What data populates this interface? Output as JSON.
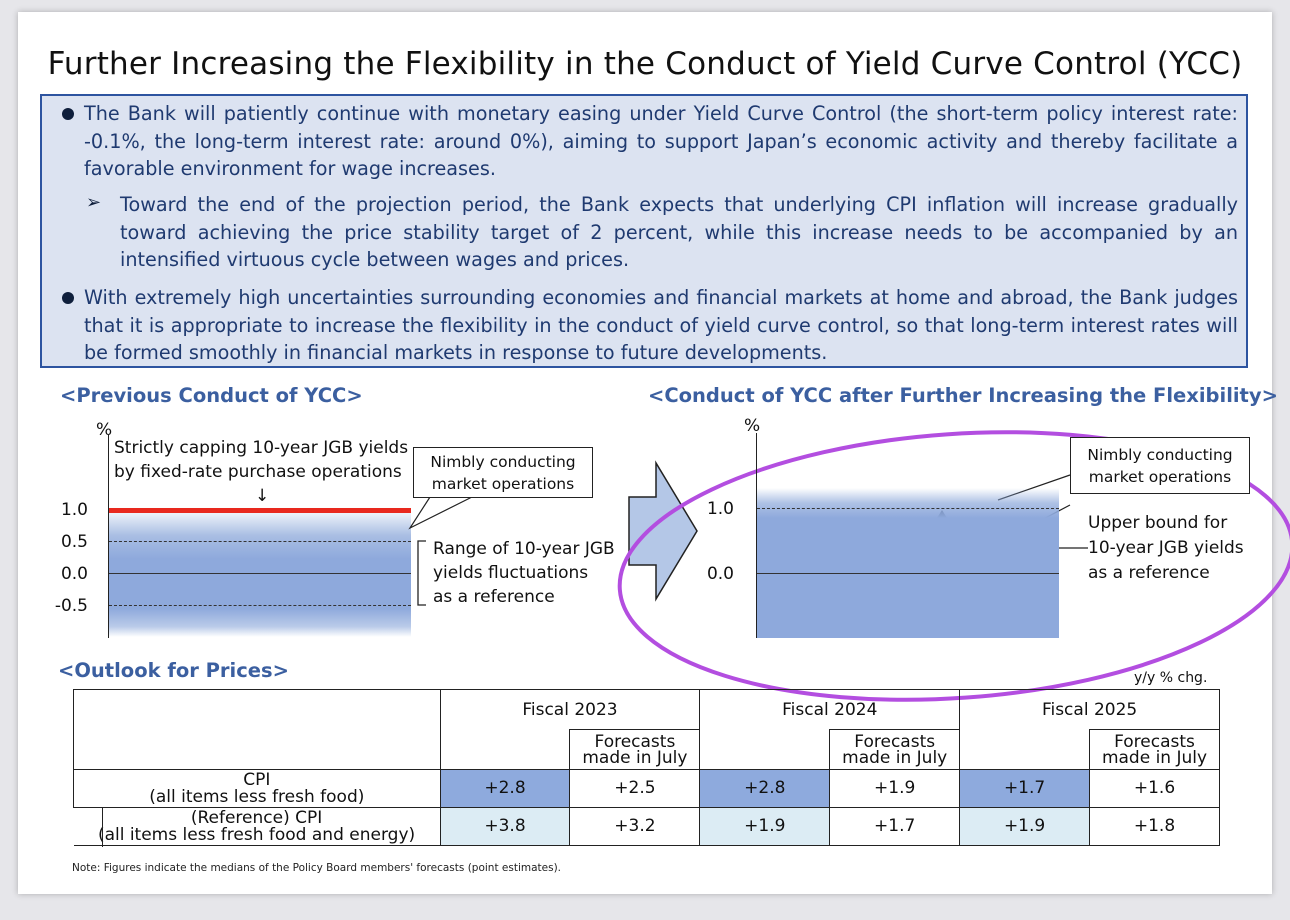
{
  "title": "Further Increasing the Flexibility in the Conduct of Yield Curve Control (YCC)",
  "summary": {
    "bullet1": "The Bank will patiently continue with monetary easing under Yield Curve Control (the short-term policy interest rate: -0.1%, the long-term interest rate: around 0%), aiming to support Japan’s economic activity and thereby facilitate a favorable environment for wage increases.",
    "sub1": "Toward the end of the projection period, the Bank expects that underlying CPI inflation will increase gradually toward achieving the price stability target of 2 percent, while this increase needs to be accompanied by an intensified virtuous cycle between wages and prices.",
    "bullet2": "With extremely high uncertainties surrounding economies and financial markets at home and abroad, the Bank judges that it is appropriate to increase the flexibility in the conduct of yield curve control, so that long-term interest rates will be formed smoothly in financial markets in response to future developments."
  },
  "previous": {
    "heading": "<Previous Conduct of YCC>",
    "unit": "%",
    "ticks": [
      "1.0",
      "0.5",
      "0.0",
      "-0.5"
    ],
    "cap_line1": "Strictly capping 10-year JGB yields",
    "cap_line2": "by fixed-rate purchase operations",
    "cap_arrow": "↓",
    "callout_line1": "Nimbly conducting",
    "callout_line2": "market operations",
    "range_line1": "Range of 10-year JGB",
    "range_line2": "yields fluctuations",
    "range_line3": "as a reference",
    "accent_color": "#e8281e"
  },
  "after": {
    "heading": "<Conduct of YCC after Further Increasing the Flexibility>",
    "unit": "%",
    "ticks": [
      "1.0",
      "0.0"
    ],
    "callout_line1": "Nimbly conducting",
    "callout_line2": "market operations",
    "upper_line1": "Upper bound for",
    "upper_line2": "10-year JGB yields",
    "upper_line3": "as a reference",
    "highlight_color": "#b34ee0"
  },
  "outlook": {
    "heading": "<Outlook for Prices>",
    "unit": "y/y % chg.",
    "years": [
      "Fiscal 2023",
      "Fiscal 2024",
      "Fiscal 2025"
    ],
    "forecast_line1": "Forecasts",
    "forecast_line2": "made in July",
    "rows": [
      {
        "label1": "CPI",
        "label2": "(all items less fresh food)",
        "values": [
          "+2.8",
          "+2.5",
          "+2.8",
          "+1.9",
          "+1.7",
          "+1.6"
        ]
      },
      {
        "label1": "(Reference) CPI",
        "label2": "(all items less fresh food and energy)",
        "values": [
          "+3.8",
          "+3.2",
          "+1.9",
          "+1.7",
          "+1.9",
          "+1.8"
        ]
      }
    ]
  },
  "note": "Note: Figures indicate the medians of the Policy Board members' forecasts (point estimates)."
}
